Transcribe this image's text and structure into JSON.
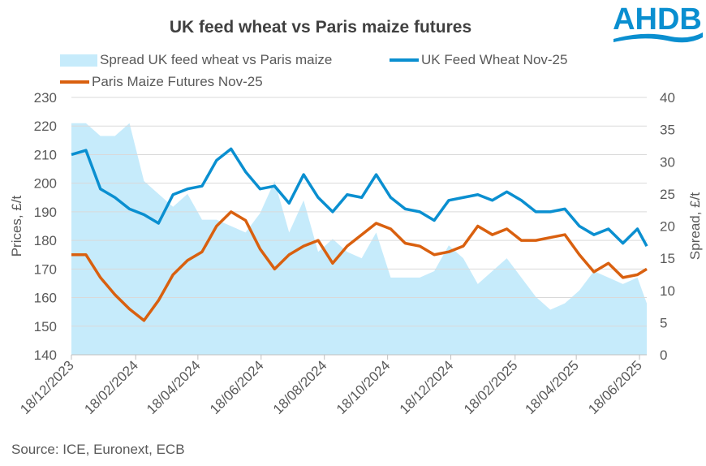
{
  "logo": {
    "text": "AHDB",
    "color": "#0a8fd0"
  },
  "source": "Source: ICE, Euronext, ECB",
  "chart_data": {
    "type": "line",
    "title": "UK feed wheat vs Paris maize futures",
    "ylabel": "Prices, £/t",
    "y2label": "Spread, £/t",
    "ylim": [
      140,
      230
    ],
    "y2lim": [
      0,
      40
    ],
    "yticks": [
      140,
      150,
      160,
      170,
      180,
      190,
      200,
      210,
      220,
      230
    ],
    "y2ticks": [
      0,
      5,
      10,
      15,
      20,
      25,
      30,
      35,
      40
    ],
    "xticks": [
      "18/12/2023",
      "18/02/2024",
      "18/04/2024",
      "18/06/2024",
      "18/08/2024",
      "18/10/2024",
      "18/12/2024",
      "18/02/2025",
      "18/04/2025",
      "18/06/2025"
    ],
    "xlim": [
      "2023-12-18",
      "2025-06-25"
    ],
    "grid": "horizontal",
    "legend": "top",
    "x": [
      "2023-12-18",
      "2024-01-01",
      "2024-01-15",
      "2024-01-29",
      "2024-02-12",
      "2024-02-26",
      "2024-03-11",
      "2024-03-25",
      "2024-04-08",
      "2024-04-22",
      "2024-05-06",
      "2024-05-20",
      "2024-06-03",
      "2024-06-17",
      "2024-07-01",
      "2024-07-15",
      "2024-07-29",
      "2024-08-12",
      "2024-08-26",
      "2024-09-09",
      "2024-09-23",
      "2024-10-07",
      "2024-10-21",
      "2024-11-04",
      "2024-11-18",
      "2024-12-02",
      "2024-12-16",
      "2024-12-30",
      "2025-01-13",
      "2025-01-27",
      "2025-02-10",
      "2025-02-24",
      "2025-03-10",
      "2025-03-24",
      "2025-04-07",
      "2025-04-21",
      "2025-05-05",
      "2025-05-19",
      "2025-06-02",
      "2025-06-16",
      "2025-06-25"
    ],
    "series": [
      {
        "name": "Spread UK feed wheat vs Paris maize",
        "type": "area",
        "axis": "right",
        "color": "#c6ebfb",
        "values": [
          36,
          36,
          34,
          34,
          36,
          27,
          25,
          23,
          25,
          21,
          21,
          20,
          19,
          22,
          27,
          19,
          24,
          16,
          18,
          16,
          15,
          19,
          12,
          12,
          12,
          13,
          17,
          15,
          11,
          13,
          15,
          12,
          9,
          7,
          8,
          10,
          13,
          12,
          11,
          12,
          8
        ]
      },
      {
        "name": "UK Feed Wheat Nov-25",
        "type": "line",
        "axis": "left",
        "color": "#0a8fd0",
        "values": [
          210,
          211.5,
          198,
          195,
          191,
          189,
          186,
          196,
          198,
          199,
          208,
          212,
          204,
          198,
          199,
          193,
          203,
          195,
          190,
          196,
          195,
          203,
          195,
          191,
          190,
          187,
          194,
          195,
          196,
          194,
          197,
          194,
          190,
          190,
          191,
          185,
          182,
          184,
          179,
          184,
          178
        ]
      },
      {
        "name": "Paris Maize Futures Nov-25",
        "type": "line",
        "axis": "left",
        "color": "#d9600f",
        "values": [
          175,
          175,
          167,
          161,
          156,
          152,
          159,
          168,
          173,
          176,
          185,
          190,
          187,
          177,
          170,
          175,
          178,
          180,
          172,
          178,
          182,
          186,
          184,
          179,
          178,
          175,
          176,
          178,
          185,
          182,
          184,
          180,
          180,
          181,
          182,
          175,
          169,
          172,
          167,
          168,
          170
        ]
      }
    ]
  }
}
